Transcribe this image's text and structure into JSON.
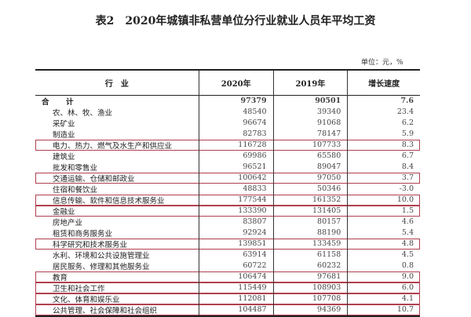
{
  "title": "表2　2020年城镇非私营单位分行业就业人员年平均工资",
  "unit": "单位：元，%",
  "headers": [
    "行　业",
    "2020年",
    "2019年",
    "增长速度"
  ],
  "highlight_color": "#b04050",
  "rows": [
    {
      "label": "合　计",
      "y2020": "97379",
      "y2019": "90501",
      "growth": "7.6",
      "highlighted": false,
      "total": true
    },
    {
      "label": "农、林、牧、渔业",
      "y2020": "48540",
      "y2019": "39340",
      "growth": "23.4",
      "highlighted": false
    },
    {
      "label": "采矿业",
      "y2020": "96674",
      "y2019": "91068",
      "growth": "6.2",
      "highlighted": false
    },
    {
      "label": "制造业",
      "y2020": "82783",
      "y2019": "78147",
      "growth": "5.9",
      "highlighted": false
    },
    {
      "label": "电力、热力、燃气及水生产和供应业",
      "y2020": "116728",
      "y2019": "107733",
      "growth": "8.3",
      "highlighted": true
    },
    {
      "label": "建筑业",
      "y2020": "69986",
      "y2019": "65580",
      "growth": "6.7",
      "highlighted": false
    },
    {
      "label": "批发和零售业",
      "y2020": "96521",
      "y2019": "89047",
      "growth": "8.4",
      "highlighted": false
    },
    {
      "label": "交通运输、仓储和邮政业",
      "y2020": "100642",
      "y2019": "97050",
      "growth": "3.7",
      "highlighted": true
    },
    {
      "label": "住宿和餐饮业",
      "y2020": "48833",
      "y2019": "50346",
      "growth": "-3.0",
      "highlighted": false
    },
    {
      "label": "信息传输、软件和信息技术服务业",
      "y2020": "177544",
      "y2019": "161352",
      "growth": "10.0",
      "highlighted": true
    },
    {
      "label": "金融业",
      "y2020": "133390",
      "y2019": "131405",
      "growth": "1.5",
      "highlighted": true
    },
    {
      "label": "房地产业",
      "y2020": "83807",
      "y2019": "80157",
      "growth": "4.6",
      "highlighted": false
    },
    {
      "label": "租赁和商务服务业",
      "y2020": "92924",
      "y2019": "88190",
      "growth": "5.4",
      "highlighted": false
    },
    {
      "label": "科学研究和技术服务业",
      "y2020": "139851",
      "y2019": "133459",
      "growth": "4.8",
      "highlighted": true
    },
    {
      "label": "水利、环境和公共设施管理业",
      "y2020": "63914",
      "y2019": "61158",
      "growth": "4.5",
      "highlighted": false
    },
    {
      "label": "居民服务、修理和其他服务业",
      "y2020": "60722",
      "y2019": "60232",
      "growth": "0.8",
      "highlighted": false
    },
    {
      "label": "教育",
      "y2020": "106474",
      "y2019": "97681",
      "growth": "9.0",
      "highlighted": true
    },
    {
      "label": "卫生和社会工作",
      "y2020": "115449",
      "y2019": "108903",
      "growth": "6.0",
      "highlighted": true
    },
    {
      "label": "文化、体育和娱乐业",
      "y2020": "112081",
      "y2019": "107708",
      "growth": "4.1",
      "highlighted": true
    },
    {
      "label": "公共管理、社会保障和社会组织",
      "y2020": "104487",
      "y2019": "94369",
      "growth": "10.7",
      "highlighted": true
    }
  ]
}
